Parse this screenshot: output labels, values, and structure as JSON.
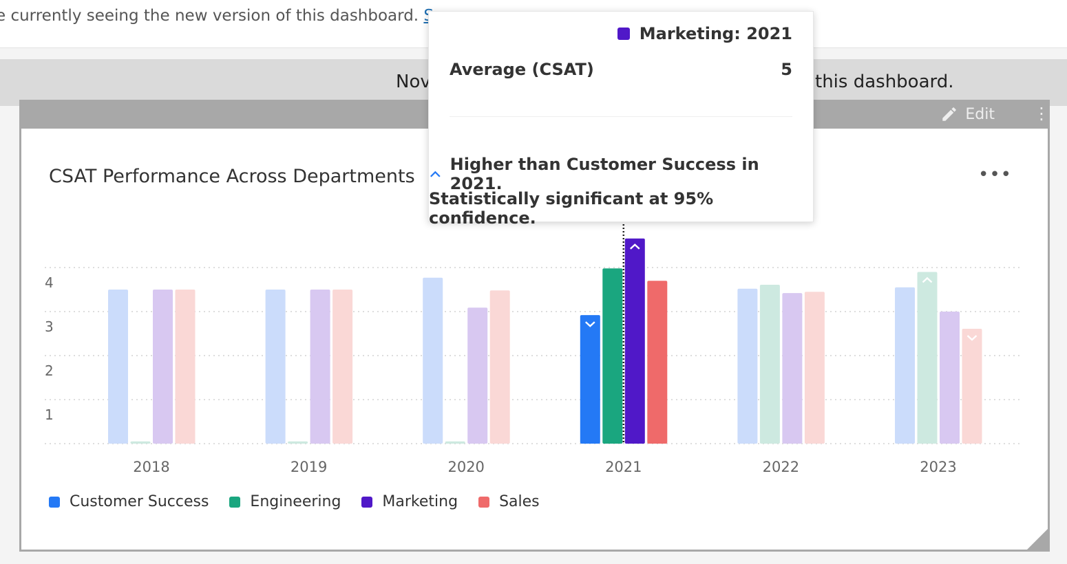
{
  "top_notice": {
    "text": "e currently seeing the new version of this dashboard.",
    "link": "Sw"
  },
  "banner": {
    "left": "Nov",
    "right": "this dashboard."
  },
  "card_header": {
    "edit_label": "Edit",
    "more_label": "⋮"
  },
  "widget": {
    "title": "CSAT Performance Across Departments",
    "more_label": "•••"
  },
  "chart_data": {
    "type": "bar",
    "title": "CSAT Performance Across Departments",
    "categories": [
      "2018",
      "2019",
      "2020",
      "2021",
      "2022",
      "2023"
    ],
    "ylim": [
      0,
      4.7
    ],
    "yticks": [
      1,
      2,
      3,
      4
    ],
    "grid": true,
    "legend_position": "bottom-left",
    "highlighted_category": "2021",
    "series": [
      {
        "name": "Customer Success",
        "color": "#2479f5",
        "values": [
          3.5,
          3.5,
          3.77,
          2.92,
          3.52,
          3.55
        ],
        "markers": [
          null,
          null,
          null,
          "down",
          null,
          null
        ]
      },
      {
        "name": "Engineering",
        "color": "#1aa67f",
        "values": [
          0.05,
          0.05,
          0.05,
          3.98,
          3.61,
          3.9
        ],
        "markers": [
          null,
          null,
          null,
          null,
          null,
          "up"
        ]
      },
      {
        "name": "Marketing",
        "color": "#5018c8",
        "values": [
          3.5,
          3.5,
          3.09,
          4.66,
          3.42,
          3.0
        ],
        "markers": [
          null,
          null,
          null,
          "up",
          null,
          null
        ]
      },
      {
        "name": "Sales",
        "color": "#ef6a6a",
        "values": [
          3.5,
          3.5,
          3.48,
          3.7,
          3.45,
          2.61
        ],
        "markers": [
          null,
          null,
          null,
          null,
          null,
          "down"
        ]
      }
    ]
  },
  "tooltip": {
    "series": "Marketing: 2021",
    "color": "#5018c8",
    "metric_label": "Average (CSAT)",
    "metric_value": "5",
    "comparison": "Higher than Customer Success in 2021.",
    "significance": "Statistically significant at 95% confidence."
  }
}
